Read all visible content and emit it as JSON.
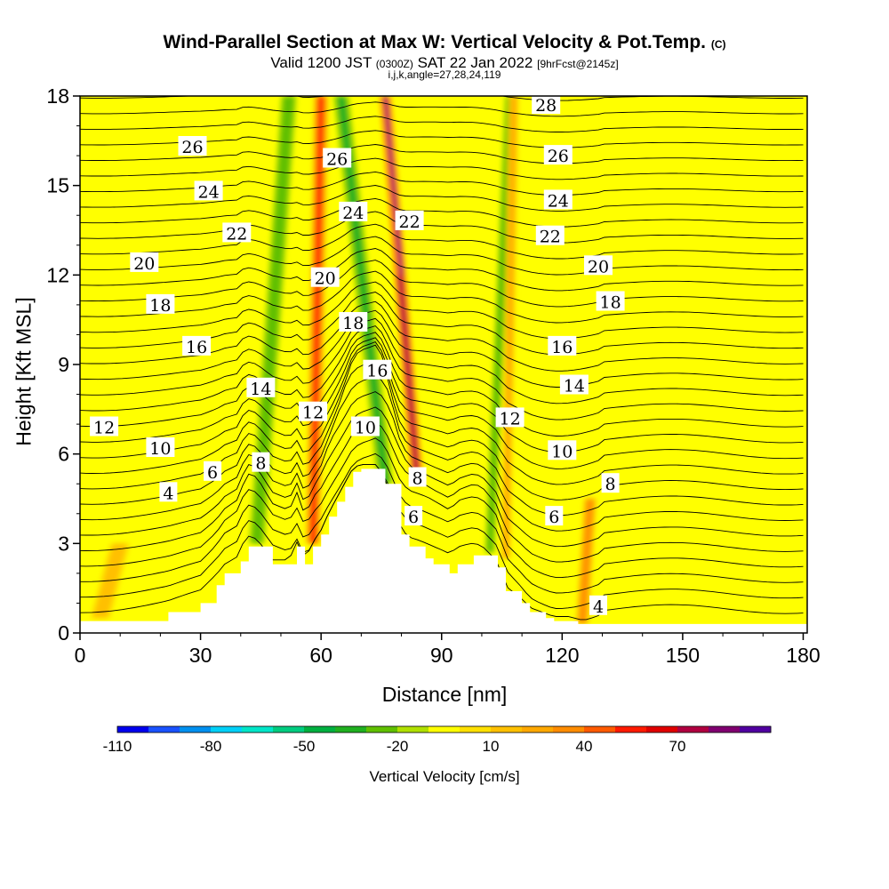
{
  "header": {
    "title": "Wind-Parallel Section at Max W: Vertical Velocity & Pot.Temp.",
    "title_tag": "(C)",
    "valid_prefix": "Valid 1200 JST",
    "valid_zulu": "(0300Z)",
    "valid_date": "SAT 22 Jan 2022",
    "forecast": "[9hrFcst@2145z]",
    "indices": "i,j,k,angle=27,28,24,119"
  },
  "chart_data": {
    "type": "heatmap",
    "xlabel": "Distance [nm]",
    "ylabel": "Height [Kft MSL]",
    "xlim": [
      0,
      181
    ],
    "ylim": [
      0,
      18
    ],
    "x_ticks": [
      0,
      30,
      60,
      90,
      120,
      150,
      180
    ],
    "y_ticks": [
      0,
      3,
      6,
      9,
      12,
      15,
      18
    ],
    "terrain_kft": {
      "x": [
        0,
        22,
        30,
        34,
        36,
        40,
        42,
        44,
        48,
        52,
        54,
        56,
        58,
        60,
        62,
        64,
        66,
        68,
        70,
        74,
        76,
        80,
        82,
        86,
        88,
        92,
        94,
        98,
        100,
        104,
        106,
        110,
        112,
        116,
        118,
        122,
        124,
        181
      ],
      "y": [
        0.4,
        0.7,
        1.0,
        1.6,
        2.0,
        2.4,
        2.9,
        2.9,
        2.3,
        2.3,
        2.9,
        2.3,
        2.9,
        3.3,
        3.9,
        4.4,
        4.9,
        5.4,
        5.5,
        5.5,
        5.0,
        3.3,
        2.9,
        2.5,
        2.3,
        2.0,
        2.3,
        2.6,
        2.6,
        2.2,
        1.4,
        1.0,
        0.7,
        0.5,
        0.4,
        0.4,
        0.3,
        0.3
      ]
    },
    "vertical_velocity": {
      "name": "Vertical Velocity [cm/s]",
      "background_cm_s": 5,
      "features": [
        {
          "x_base": 44,
          "y_base": 3.0,
          "x_top": 52,
          "y_top": 18,
          "width_nm": 4,
          "w_cm_s": -30
        },
        {
          "x_base": 58,
          "y_base": 3.0,
          "x_top": 60,
          "y_top": 18,
          "width_nm": 3.5,
          "w_cm_s": 50
        },
        {
          "x_base": 76,
          "y_base": 5.0,
          "x_top": 65,
          "y_top": 18,
          "width_nm": 4,
          "w_cm_s": -40
        },
        {
          "x_base": 84,
          "y_base": 5.0,
          "x_top": 76,
          "y_top": 18,
          "width_nm": 3,
          "w_cm_s": 70
        },
        {
          "x_base": 80,
          "y_base": 12,
          "x_top": 76,
          "y_top": 18,
          "width_nm": 2,
          "w_cm_s": 85
        },
        {
          "x_base": 102,
          "y_base": 2.7,
          "x_top": 107,
          "y_top": 18,
          "width_nm": 2.5,
          "w_cm_s": -30
        },
        {
          "x_base": 106,
          "y_base": 2.5,
          "x_top": 108,
          "y_top": 18,
          "width_nm": 2.5,
          "w_cm_s": 20
        },
        {
          "x_base": 125,
          "y_base": 0.3,
          "x_top": 127,
          "y_top": 4.5,
          "width_nm": 3,
          "w_cm_s": 30
        },
        {
          "x_base": 5,
          "y_base": 0.5,
          "x_top": 10,
          "y_top": 3.0,
          "width_nm": 5,
          "w_cm_s": 18
        }
      ]
    },
    "pot_temp_labels": [
      {
        "text": "26",
        "x": 28,
        "y": 16.3
      },
      {
        "text": "24",
        "x": 32,
        "y": 14.8
      },
      {
        "text": "22",
        "x": 39,
        "y": 13.4
      },
      {
        "text": "20",
        "x": 16,
        "y": 12.4
      },
      {
        "text": "18",
        "x": 20,
        "y": 11.0
      },
      {
        "text": "16",
        "x": 29,
        "y": 9.6
      },
      {
        "text": "14",
        "x": 45,
        "y": 8.2
      },
      {
        "text": "12",
        "x": 6,
        "y": 6.9
      },
      {
        "text": "12",
        "x": 58,
        "y": 7.4
      },
      {
        "text": "10",
        "x": 20,
        "y": 6.2
      },
      {
        "text": "8",
        "x": 45,
        "y": 5.7
      },
      {
        "text": "6",
        "x": 33,
        "y": 5.4
      },
      {
        "text": "4",
        "x": 22,
        "y": 4.7
      },
      {
        "text": "26",
        "x": 64,
        "y": 15.9
      },
      {
        "text": "24",
        "x": 68,
        "y": 14.1
      },
      {
        "text": "22",
        "x": 82,
        "y": 13.8
      },
      {
        "text": "20",
        "x": 61,
        "y": 11.9
      },
      {
        "text": "18",
        "x": 68,
        "y": 10.4
      },
      {
        "text": "16",
        "x": 74,
        "y": 8.8
      },
      {
        "text": "10",
        "x": 71,
        "y": 6.9
      },
      {
        "text": "8",
        "x": 84,
        "y": 5.2
      },
      {
        "text": "6",
        "x": 83,
        "y": 3.9
      },
      {
        "text": "28",
        "x": 116,
        "y": 17.7
      },
      {
        "text": "26",
        "x": 119,
        "y": 16.0
      },
      {
        "text": "24",
        "x": 119,
        "y": 14.5
      },
      {
        "text": "22",
        "x": 117,
        "y": 13.3
      },
      {
        "text": "20",
        "x": 129,
        "y": 12.3
      },
      {
        "text": "18",
        "x": 132,
        "y": 11.1
      },
      {
        "text": "16",
        "x": 120,
        "y": 9.6
      },
      {
        "text": "14",
        "x": 123,
        "y": 8.3
      },
      {
        "text": "12",
        "x": 107,
        "y": 7.2
      },
      {
        "text": "10",
        "x": 120,
        "y": 6.1
      },
      {
        "text": "8",
        "x": 132,
        "y": 5.0
      },
      {
        "text": "6",
        "x": 118,
        "y": 3.9
      },
      {
        "text": "4",
        "x": 129,
        "y": 0.9
      }
    ],
    "colorbar": {
      "label": "Vertical Velocity [cm/s]",
      "min": -110,
      "step": 10,
      "tick_labels": [
        "-110",
        "-80",
        "-50",
        "-20",
        "10",
        "40",
        "70"
      ],
      "colors": [
        "#0000ee",
        "#1a52ff",
        "#0090f0",
        "#00d0f8",
        "#00e6c8",
        "#00cc80",
        "#00b040",
        "#20b020",
        "#60c000",
        "#b0e000",
        "#ffff00",
        "#ffe000",
        "#ffc000",
        "#ffa800",
        "#ff8c00",
        "#ff5a00",
        "#ff1a00",
        "#e00000",
        "#b00040",
        "#800070",
        "#5000a0"
      ]
    }
  }
}
